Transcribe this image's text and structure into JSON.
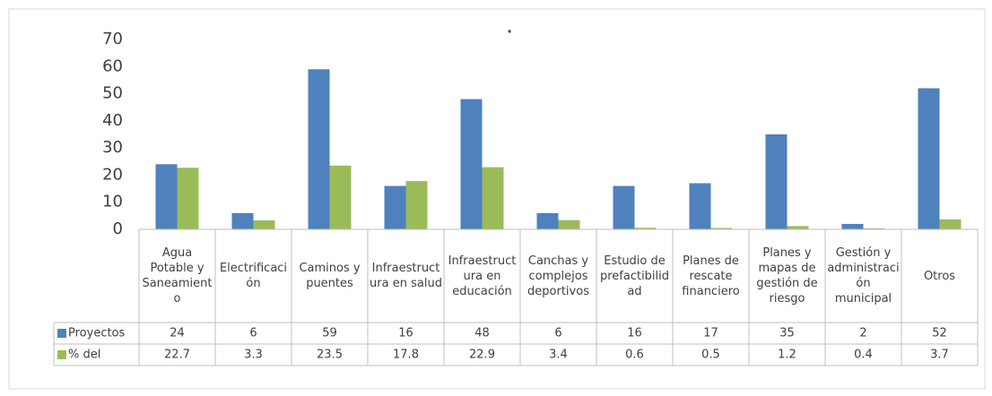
{
  "chart_data": {
    "type": "bar",
    "title": ".",
    "categories": [
      "Agua Potable y Saneamiento",
      "Electrificación",
      "Caminos y puentes",
      "Infraestructura en salud",
      "Infraestructura en educación",
      "Canchas y complejos deportivos",
      "Estudio de prefactibilidad",
      "Planes de rescate financiero",
      "Planes y mapas de gestión de riesgo",
      "Gestión y administración municipal",
      "Otros"
    ],
    "series": [
      {
        "name": "Proyectos",
        "color": "#4f81bd",
        "values": [
          24,
          6,
          59,
          16,
          48,
          6,
          16,
          17,
          35,
          2,
          52
        ]
      },
      {
        "name": "% del",
        "color": "#9bbb59",
        "values": [
          22.7,
          3.3,
          23.5,
          17.8,
          22.9,
          3.4,
          0.6,
          0.5,
          1.2,
          0.4,
          3.7
        ]
      }
    ],
    "ylim": [
      0,
      70
    ],
    "yticks": [
      0,
      10,
      20,
      30,
      40,
      50,
      60,
      70
    ],
    "grid": false,
    "data_table": true
  }
}
